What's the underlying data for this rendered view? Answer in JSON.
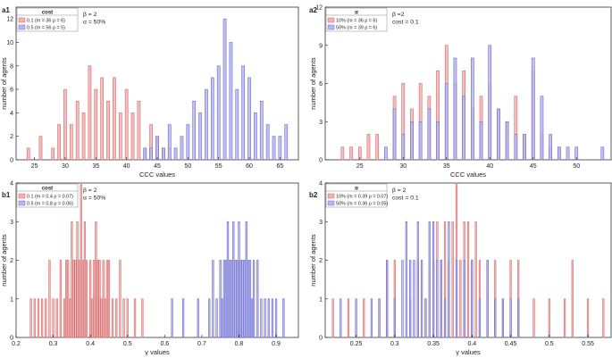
{
  "colors": {
    "red_fill": "#f2b3b3",
    "red_stroke": "#d46a6a",
    "blue_fill": "#b8b8ee",
    "blue_stroke": "#6b6bd0",
    "axis": "#333333"
  },
  "chart_data": [
    {
      "id": "a1",
      "panel_label": "a1",
      "type": "bar",
      "xlabel": "CCC values",
      "ylabel": "number of agents",
      "xlim": [
        22,
        68
      ],
      "ylim": [
        0,
        13
      ],
      "xticks": [
        25,
        30,
        35,
        40,
        45,
        50,
        55,
        60,
        65
      ],
      "yticks": [
        0,
        2,
        4,
        6,
        8,
        10,
        12
      ],
      "bar_width": 0.45,
      "legend_title": "cost",
      "legend": [
        "0.1 (m = 36 ρ = 6)",
        "0.5 (m = 56 ρ = 5)"
      ],
      "annotation": [
        "β = 2",
        "α = 50%"
      ],
      "series": [
        {
          "name": "0.1 (m = 36 ρ = 6)",
          "color": "red",
          "x": [
            24,
            26,
            28,
            29,
            30,
            31,
            32,
            33,
            34,
            35,
            36,
            37,
            38,
            39,
            40,
            41,
            42,
            43,
            44,
            45,
            46,
            47
          ],
          "y": [
            1,
            2,
            1,
            3,
            6,
            3,
            5,
            4,
            8,
            6,
            7,
            5,
            7,
            4,
            6,
            4,
            5,
            1,
            3,
            2,
            1,
            1
          ]
        },
        {
          "name": "0.5 (m = 56 ρ = 5)",
          "color": "blue",
          "x": [
            43,
            44,
            45,
            46,
            47,
            48,
            49,
            50,
            51,
            52,
            53,
            54,
            55,
            56,
            57,
            58,
            59,
            60,
            61,
            62,
            63,
            64,
            65,
            66
          ],
          "y": [
            1,
            1,
            2,
            1,
            3,
            1,
            2,
            3,
            5,
            4,
            6,
            7,
            8,
            12,
            10,
            6,
            8,
            7,
            4,
            5,
            3,
            2,
            2,
            3
          ]
        }
      ]
    },
    {
      "id": "a2",
      "panel_label": "a2",
      "type": "bar",
      "xlabel": "CCC values",
      "ylabel": "number of agents",
      "xlim": [
        21,
        54
      ],
      "ylim": [
        0,
        12
      ],
      "xticks": [
        25,
        30,
        35,
        40,
        45,
        50
      ],
      "yticks": [
        0,
        3,
        6,
        9,
        12
      ],
      "bar_width": 0.32,
      "legend_title": "α",
      "legend": [
        "10% (m = 36 ρ = 6)",
        "50% (m = 39 ρ = 6)"
      ],
      "annotation": [
        "β =2",
        "cost = 0.1"
      ],
      "series": [
        {
          "name": "10% (m = 36 ρ = 6)",
          "color": "red",
          "x": [
            23,
            24,
            25,
            26,
            27,
            29,
            30,
            31,
            32,
            33,
            34,
            35,
            36,
            37,
            38,
            39,
            40,
            41,
            42,
            43,
            44,
            45,
            46,
            47,
            48
          ],
          "y": [
            1,
            1,
            1,
            2,
            2,
            5,
            6,
            4,
            6,
            5,
            7,
            9,
            6,
            7,
            4,
            5,
            6,
            4,
            3,
            5,
            2,
            7,
            2,
            1,
            1
          ]
        },
        {
          "name": "50% (m = 39 ρ = 6)",
          "color": "blue",
          "x": [
            28,
            29,
            30,
            31,
            32,
            33,
            34,
            35,
            36,
            37,
            38,
            39,
            40,
            41,
            42,
            43,
            44,
            45,
            46,
            47,
            48,
            49,
            50,
            53
          ],
          "y": [
            1,
            4,
            2,
            3,
            3,
            4,
            3,
            6,
            8,
            5,
            8,
            3,
            9,
            4,
            3,
            2,
            2,
            8,
            5,
            2,
            1,
            1,
            1,
            1
          ]
        }
      ]
    },
    {
      "id": "b1",
      "panel_label": "b1",
      "type": "bar",
      "xlabel": "γ values",
      "ylabel": "number of agents",
      "xlim": [
        0.2,
        0.96
      ],
      "ylim": [
        0,
        4
      ],
      "xticks": [
        0.2,
        0.3,
        0.4,
        0.5,
        0.6,
        0.7,
        0.8,
        0.9
      ],
      "yticks": [
        0,
        1,
        2,
        3,
        4
      ],
      "bar_width": 0.004,
      "legend_title": "cost",
      "legend": [
        "0.1 (m = 0.4 ρ = 0.07)",
        "0.5 (m = 0.8 ρ = 0.06)"
      ],
      "annotation": [
        "β = 2",
        "α = 50%"
      ],
      "series": [
        {
          "name": "0.1 (m = 0.4 ρ = 0.07)",
          "color": "red",
          "x": [
            0.24,
            0.25,
            0.26,
            0.27,
            0.28,
            0.29,
            0.3,
            0.31,
            0.32,
            0.33,
            0.335,
            0.34,
            0.345,
            0.35,
            0.355,
            0.36,
            0.365,
            0.37,
            0.375,
            0.38,
            0.385,
            0.39,
            0.4,
            0.405,
            0.41,
            0.415,
            0.42,
            0.425,
            0.43,
            0.435,
            0.44,
            0.445,
            0.45,
            0.46,
            0.47,
            0.48,
            0.49,
            0.5,
            0.52,
            0.54
          ],
          "y": [
            1,
            1,
            1,
            1,
            1,
            2,
            1,
            1,
            2,
            1,
            2,
            2,
            1,
            3,
            2,
            2,
            3,
            2,
            4,
            2,
            3,
            2,
            2,
            1,
            2,
            3,
            2,
            2,
            1,
            2,
            1,
            2,
            2,
            1,
            1,
            2,
            1,
            1,
            1,
            1
          ]
        },
        {
          "name": "0.5 (m = 0.8 ρ = 0.06)",
          "color": "blue",
          "x": [
            0.62,
            0.65,
            0.69,
            0.72,
            0.73,
            0.74,
            0.75,
            0.755,
            0.76,
            0.765,
            0.77,
            0.775,
            0.78,
            0.785,
            0.79,
            0.795,
            0.8,
            0.805,
            0.81,
            0.815,
            0.82,
            0.825,
            0.83,
            0.835,
            0.84,
            0.85,
            0.86,
            0.87,
            0.88,
            0.89,
            0.9,
            0.92
          ],
          "y": [
            1,
            1,
            1,
            1,
            2,
            1,
            2,
            1,
            2,
            2,
            3,
            2,
            2,
            3,
            2,
            2,
            3,
            2,
            2,
            2,
            3,
            2,
            2,
            1,
            2,
            2,
            1,
            1,
            1,
            1,
            1,
            1
          ]
        }
      ]
    },
    {
      "id": "b2",
      "panel_label": "b2",
      "type": "bar",
      "xlabel": "γ values",
      "ylabel": "number of agents",
      "xlim": [
        0.21,
        0.58
      ],
      "ylim": [
        0,
        4
      ],
      "xticks": [
        0.25,
        0.3,
        0.35,
        0.4,
        0.45,
        0.5,
        0.55
      ],
      "yticks": [
        0,
        1,
        2,
        3,
        4
      ],
      "bar_width": 0.0018,
      "legend_title": "α",
      "legend": [
        "10% (m = 0.39 ρ = 0.07)",
        "50% (m = 0.36 ρ = 0.05)"
      ],
      "annotation": [
        "β = 2",
        "cost = 0.1"
      ],
      "series": [
        {
          "name": "10% (m = 0.39 ρ = 0.07)",
          "color": "red",
          "x": [
            0.22,
            0.24,
            0.26,
            0.28,
            0.29,
            0.3,
            0.32,
            0.33,
            0.34,
            0.35,
            0.355,
            0.36,
            0.365,
            0.37,
            0.375,
            0.38,
            0.385,
            0.39,
            0.395,
            0.4,
            0.405,
            0.41,
            0.42,
            0.43,
            0.44,
            0.45,
            0.46,
            0.48,
            0.5,
            0.52,
            0.53,
            0.55,
            0.57
          ],
          "y": [
            1,
            1,
            1,
            1,
            2,
            2,
            1,
            2,
            1,
            2,
            3,
            2,
            3,
            2,
            3,
            4,
            2,
            3,
            3,
            2,
            3,
            2,
            2,
            2,
            1,
            2,
            2,
            1,
            1,
            1,
            2,
            1,
            1
          ]
        },
        {
          "name": "50% (m = 0.36 ρ = 0.05)",
          "color": "blue",
          "x": [
            0.23,
            0.25,
            0.27,
            0.28,
            0.29,
            0.3,
            0.31,
            0.315,
            0.32,
            0.325,
            0.33,
            0.335,
            0.34,
            0.345,
            0.35,
            0.355,
            0.36,
            0.365,
            0.37,
            0.38,
            0.39,
            0.4,
            0.41,
            0.42,
            0.43,
            0.44,
            0.45,
            0.46
          ],
          "y": [
            1,
            1,
            1,
            1,
            2,
            1,
            2,
            3,
            2,
            2,
            3,
            2,
            1,
            3,
            3,
            2,
            2,
            1,
            3,
            2,
            2,
            2,
            1,
            2,
            1,
            1,
            1,
            1
          ]
        }
      ]
    }
  ]
}
